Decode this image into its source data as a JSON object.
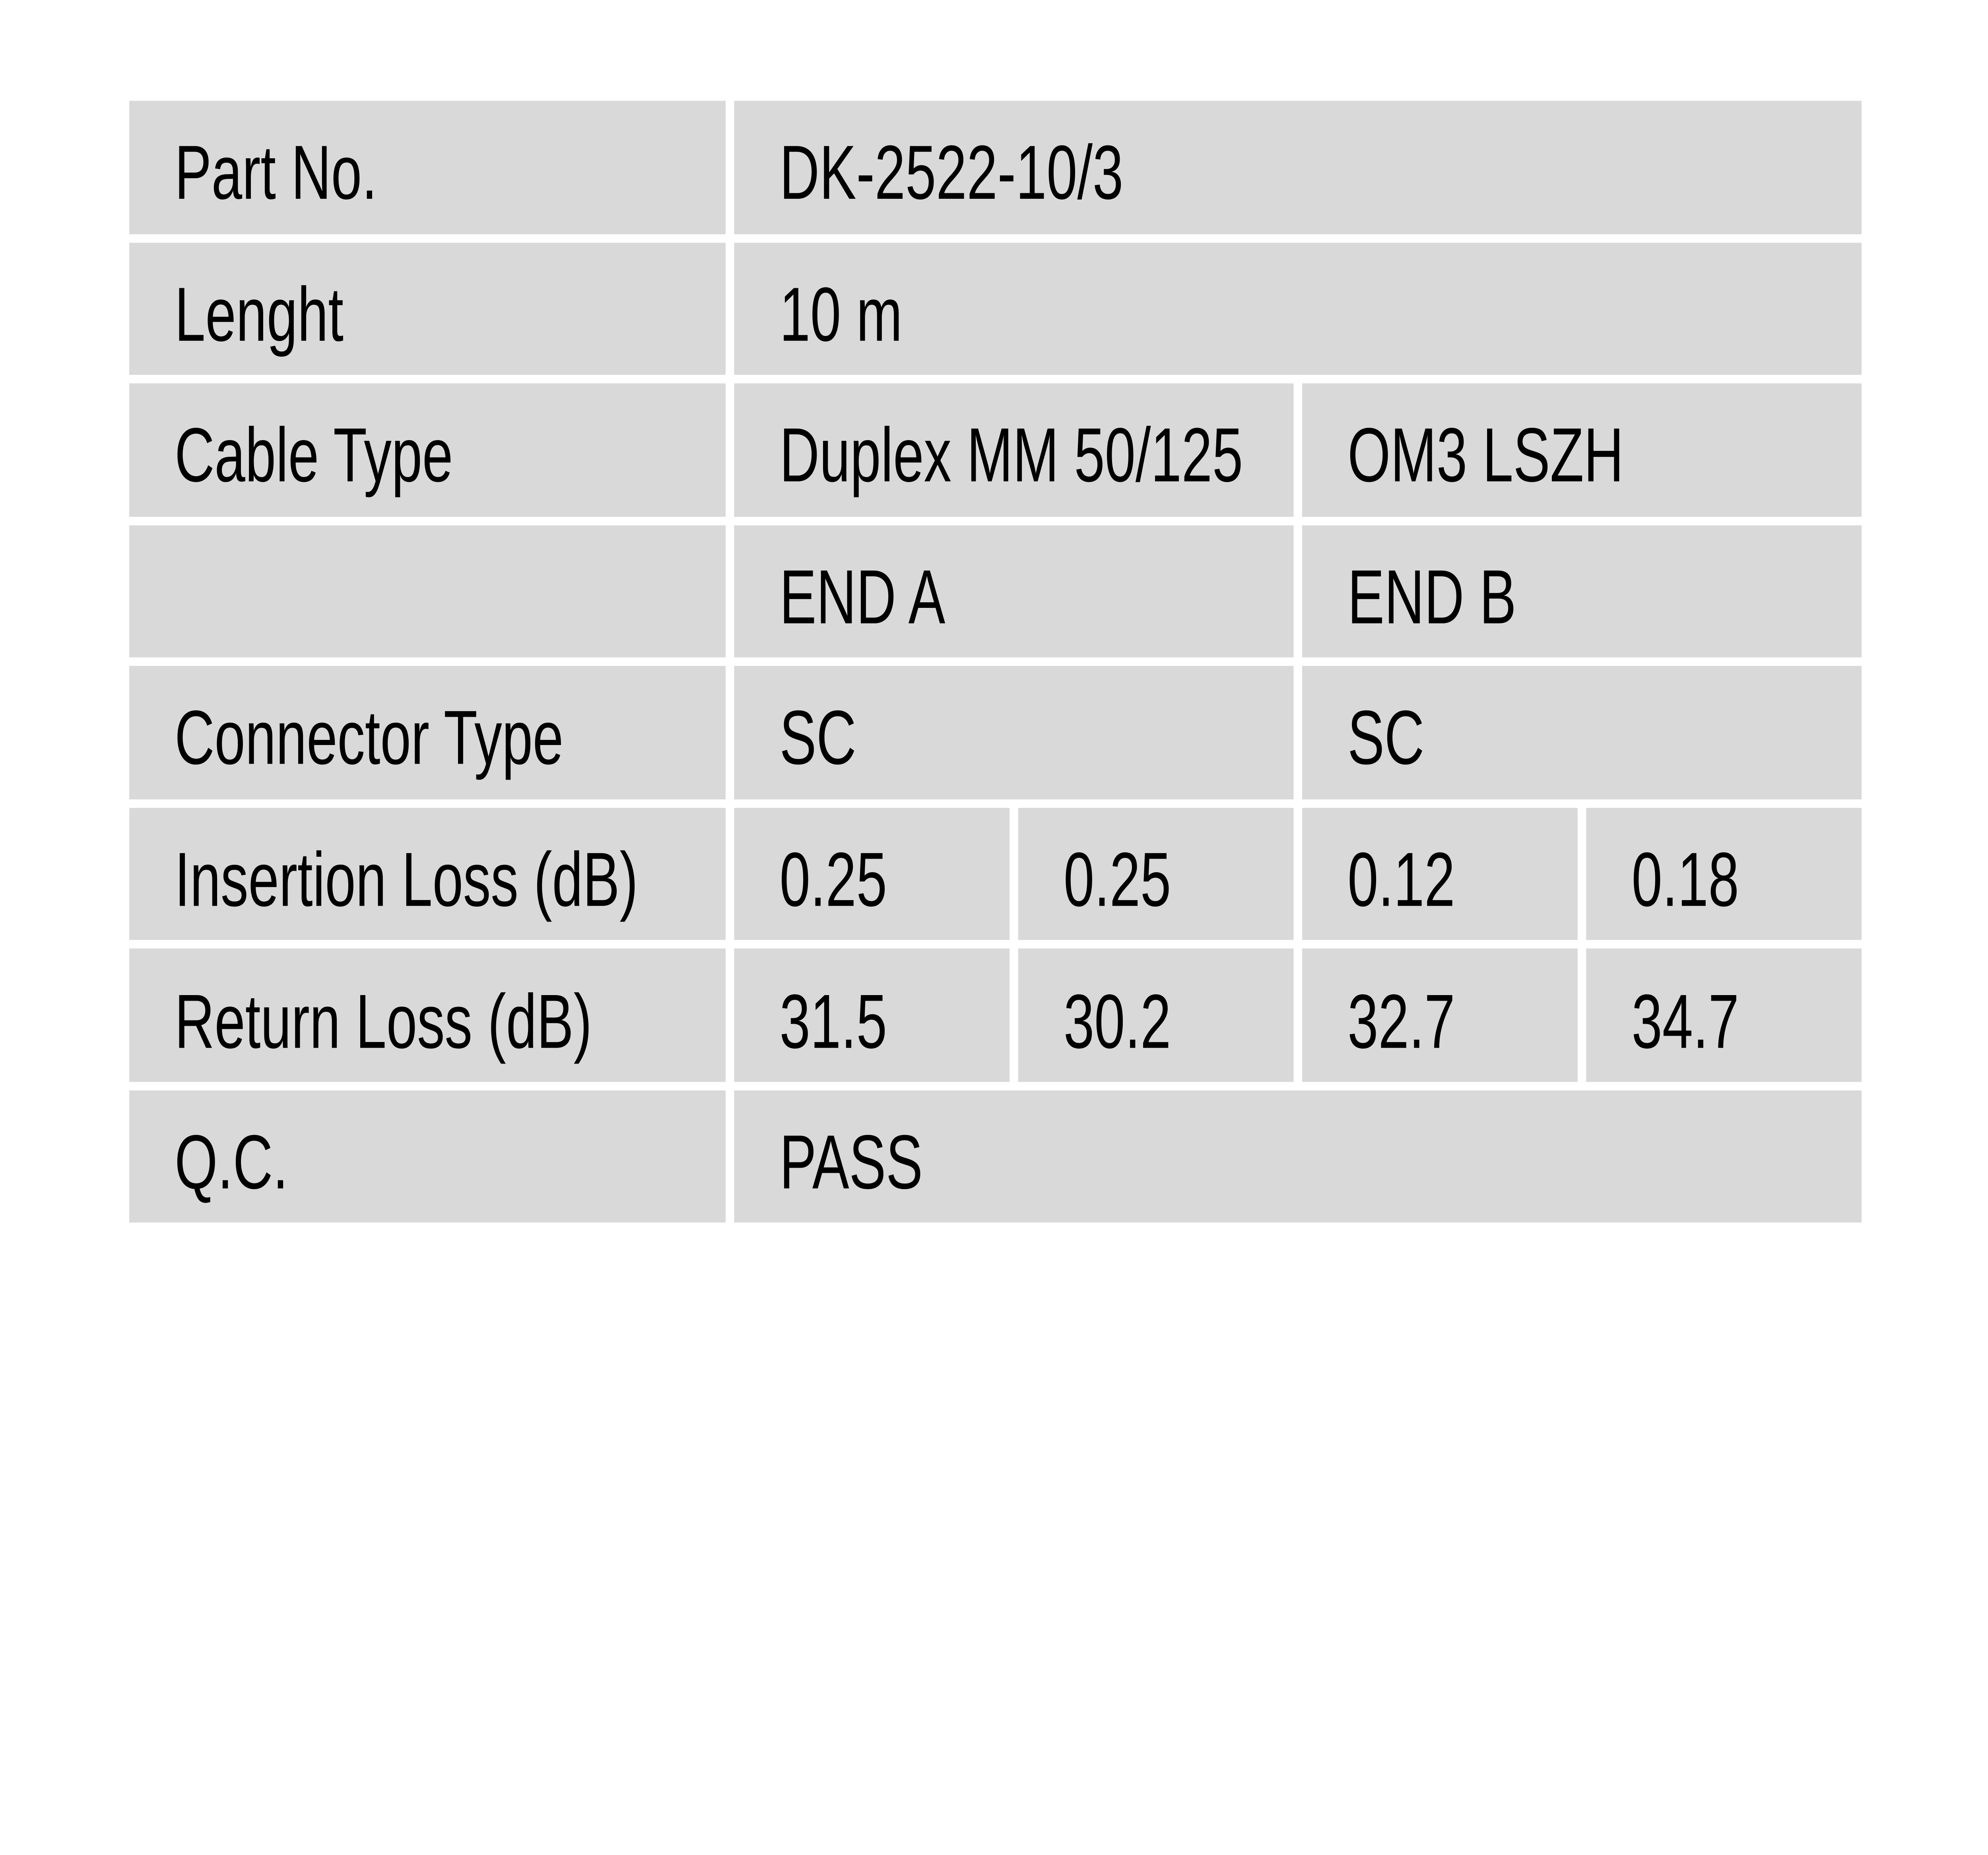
{
  "colors": {
    "page_background": "#ffffff",
    "cell_background": "#d9d9d9",
    "gutter": "#ffffff",
    "text": "#000000"
  },
  "table": {
    "rows": [
      {
        "label": "Part No.",
        "cells": [
          {
            "text": "DK-2522-10/3",
            "span": 4
          }
        ]
      },
      {
        "label": "Lenght",
        "cells": [
          {
            "text": "10 m",
            "span": 4
          }
        ]
      },
      {
        "label": "Cable Type",
        "cells": [
          {
            "text": "Duplex MM 50/125",
            "span": 2
          },
          {
            "text": "OM3 LSZH",
            "span": 2
          }
        ]
      },
      {
        "label": "",
        "cells": [
          {
            "text": "END A",
            "span": 2
          },
          {
            "text": "END B",
            "span": 2
          }
        ]
      },
      {
        "label": "Connector Type",
        "cells": [
          {
            "text": "SC",
            "span": 2
          },
          {
            "text": "SC",
            "span": 2
          }
        ]
      },
      {
        "label": "Insertion Loss (dB)",
        "cells": [
          {
            "text": "0.25",
            "span": 1
          },
          {
            "text": "0.25",
            "span": 1
          },
          {
            "text": "0.12",
            "span": 1
          },
          {
            "text": "0.18",
            "span": 1
          }
        ]
      },
      {
        "label": "Return Loss (dB)",
        "cells": [
          {
            "text": "31.5",
            "span": 1
          },
          {
            "text": "30.2",
            "span": 1
          },
          {
            "text": "32.7",
            "span": 1
          },
          {
            "text": "34.7",
            "span": 1
          }
        ]
      },
      {
        "label": "Q.C.",
        "cells": [
          {
            "text": "PASS",
            "span": 4
          }
        ]
      }
    ]
  }
}
